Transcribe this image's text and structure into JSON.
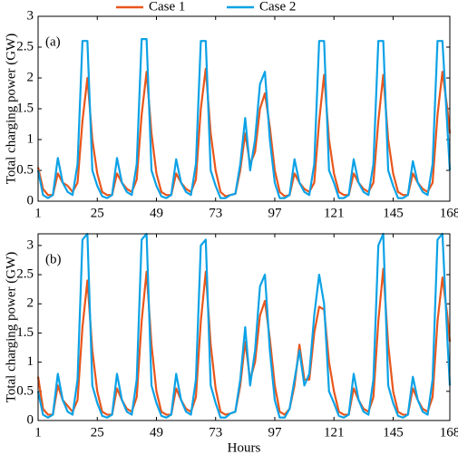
{
  "chart_data": [
    {
      "type": "line",
      "panel_label": "(a)",
      "ylabel": "Total charging power (GW)",
      "x": [
        1,
        3,
        5,
        7,
        9,
        11,
        13,
        15,
        17,
        19,
        21,
        23,
        25,
        27,
        29,
        31,
        33,
        35,
        37,
        39,
        41,
        43,
        45,
        47,
        49,
        51,
        53,
        55,
        57,
        59,
        61,
        63,
        65,
        67,
        69,
        71,
        73,
        75,
        77,
        79,
        81,
        83,
        85,
        87,
        89,
        91,
        93,
        95,
        97,
        99,
        101,
        103,
        105,
        107,
        109,
        111,
        113,
        115,
        117,
        119,
        121,
        123,
        125,
        127,
        129,
        131,
        133,
        135,
        137,
        139,
        141,
        143,
        145,
        147,
        149,
        151,
        153,
        155,
        157,
        159,
        161,
        163,
        165,
        167,
        168
      ],
      "xlim": [
        1,
        168
      ],
      "xticks": [
        1,
        25,
        49,
        73,
        97,
        121,
        145,
        168
      ],
      "ylim": [
        0,
        3
      ],
      "yticks": [
        0,
        0.5,
        1,
        1.5,
        2,
        2.5,
        3
      ],
      "series": [
        {
          "name": "Case 1",
          "color": "#e8561c",
          "values": [
            0.55,
            0.2,
            0.1,
            0.1,
            0.45,
            0.3,
            0.25,
            0.15,
            0.3,
            1.3,
            2.0,
            1.0,
            0.45,
            0.15,
            0.1,
            0.1,
            0.45,
            0.3,
            0.2,
            0.15,
            0.35,
            1.4,
            2.1,
            1.1,
            0.45,
            0.15,
            0.1,
            0.1,
            0.45,
            0.3,
            0.2,
            0.15,
            0.35,
            1.5,
            2.15,
            1.1,
            0.5,
            0.15,
            0.08,
            0.1,
            0.12,
            0.5,
            1.1,
            0.6,
            0.8,
            1.5,
            1.75,
            1.2,
            0.5,
            0.15,
            0.08,
            0.1,
            0.45,
            0.3,
            0.2,
            0.15,
            0.3,
            1.3,
            2.05,
            1.0,
            0.45,
            0.15,
            0.1,
            0.1,
            0.45,
            0.3,
            0.2,
            0.15,
            0.3,
            1.3,
            2.05,
            1.0,
            0.45,
            0.15,
            0.1,
            0.1,
            0.45,
            0.3,
            0.2,
            0.15,
            0.3,
            1.4,
            2.1,
            1.5,
            1.1
          ]
        },
        {
          "name": "Case 2",
          "color": "#0ca2e6",
          "values": [
            0.5,
            0.1,
            0.05,
            0.1,
            0.7,
            0.3,
            0.15,
            0.1,
            0.6,
            2.6,
            2.6,
            0.5,
            0.25,
            0.08,
            0.05,
            0.1,
            0.7,
            0.3,
            0.15,
            0.1,
            0.6,
            2.63,
            2.63,
            0.5,
            0.25,
            0.08,
            0.05,
            0.1,
            0.68,
            0.3,
            0.15,
            0.1,
            0.6,
            2.6,
            2.6,
            0.5,
            0.25,
            0.05,
            0.05,
            0.1,
            0.12,
            0.6,
            1.35,
            0.5,
            1.0,
            1.9,
            2.1,
            1.0,
            0.3,
            0.05,
            0.05,
            0.1,
            0.68,
            0.3,
            0.15,
            0.1,
            0.6,
            2.6,
            2.6,
            0.5,
            0.3,
            0.05,
            0.05,
            0.1,
            0.68,
            0.3,
            0.15,
            0.1,
            0.6,
            2.6,
            2.6,
            0.5,
            0.25,
            0.05,
            0.05,
            0.1,
            0.65,
            0.3,
            0.15,
            0.1,
            0.6,
            2.6,
            2.6,
            1.2,
            0.5
          ]
        }
      ]
    },
    {
      "type": "line",
      "panel_label": "(b)",
      "ylabel": "Total charging power (GW)",
      "xlabel": "Hours",
      "x": [
        1,
        3,
        5,
        7,
        9,
        11,
        13,
        15,
        17,
        19,
        21,
        23,
        25,
        27,
        29,
        31,
        33,
        35,
        37,
        39,
        41,
        43,
        45,
        47,
        49,
        51,
        53,
        55,
        57,
        59,
        61,
        63,
        65,
        67,
        69,
        71,
        73,
        75,
        77,
        79,
        81,
        83,
        85,
        87,
        89,
        91,
        93,
        95,
        97,
        99,
        101,
        103,
        105,
        107,
        109,
        111,
        113,
        115,
        117,
        119,
        121,
        123,
        125,
        127,
        129,
        131,
        133,
        135,
        137,
        139,
        141,
        143,
        145,
        147,
        149,
        151,
        153,
        155,
        157,
        159,
        161,
        163,
        165,
        167,
        168
      ],
      "xlim": [
        1,
        168
      ],
      "xticks": [
        1,
        25,
        49,
        73,
        97,
        121,
        145,
        168
      ],
      "ylim": [
        0,
        3.2
      ],
      "yticks": [
        0,
        0.5,
        1,
        1.5,
        2,
        2.5,
        3
      ],
      "series": [
        {
          "color": "#e8561c",
          "values": [
            0.75,
            0.2,
            0.1,
            0.1,
            0.6,
            0.35,
            0.25,
            0.15,
            0.35,
            1.6,
            2.4,
            1.2,
            0.5,
            0.15,
            0.1,
            0.1,
            0.55,
            0.35,
            0.2,
            0.15,
            0.4,
            1.7,
            2.55,
            1.3,
            0.5,
            0.15,
            0.1,
            0.1,
            0.55,
            0.35,
            0.2,
            0.15,
            0.4,
            1.7,
            2.55,
            1.3,
            0.55,
            0.15,
            0.1,
            0.12,
            0.15,
            0.6,
            1.35,
            0.7,
            1.0,
            1.8,
            2.05,
            1.4,
            0.6,
            0.15,
            0.1,
            0.2,
            0.6,
            1.3,
            0.7,
            0.7,
            1.5,
            1.95,
            1.9,
            1.0,
            0.5,
            0.15,
            0.1,
            0.1,
            0.55,
            0.35,
            0.2,
            0.15,
            0.4,
            1.7,
            2.6,
            1.3,
            0.5,
            0.15,
            0.1,
            0.1,
            0.55,
            0.35,
            0.2,
            0.15,
            0.4,
            1.7,
            2.45,
            1.8,
            1.35
          ]
        },
        {
          "color": "#0ca2e6",
          "values": [
            0.5,
            0.1,
            0.05,
            0.1,
            0.8,
            0.35,
            0.15,
            0.1,
            0.7,
            3.1,
            3.2,
            0.6,
            0.3,
            0.08,
            0.05,
            0.1,
            0.8,
            0.35,
            0.15,
            0.1,
            0.7,
            3.1,
            3.2,
            0.6,
            0.3,
            0.08,
            0.05,
            0.1,
            0.8,
            0.35,
            0.15,
            0.1,
            0.7,
            3.0,
            3.1,
            0.6,
            0.3,
            0.05,
            0.05,
            0.12,
            0.15,
            0.7,
            1.6,
            0.6,
            1.2,
            2.3,
            2.5,
            1.2,
            0.35,
            0.05,
            0.05,
            0.2,
            0.7,
            1.2,
            0.6,
            0.8,
            1.8,
            2.5,
            2.0,
            0.5,
            0.3,
            0.08,
            0.05,
            0.1,
            0.8,
            0.35,
            0.15,
            0.1,
            0.7,
            3.0,
            3.2,
            0.6,
            0.3,
            0.08,
            0.05,
            0.1,
            0.75,
            0.35,
            0.15,
            0.1,
            0.7,
            3.1,
            3.2,
            1.4,
            0.6
          ]
        }
      ]
    }
  ]
}
